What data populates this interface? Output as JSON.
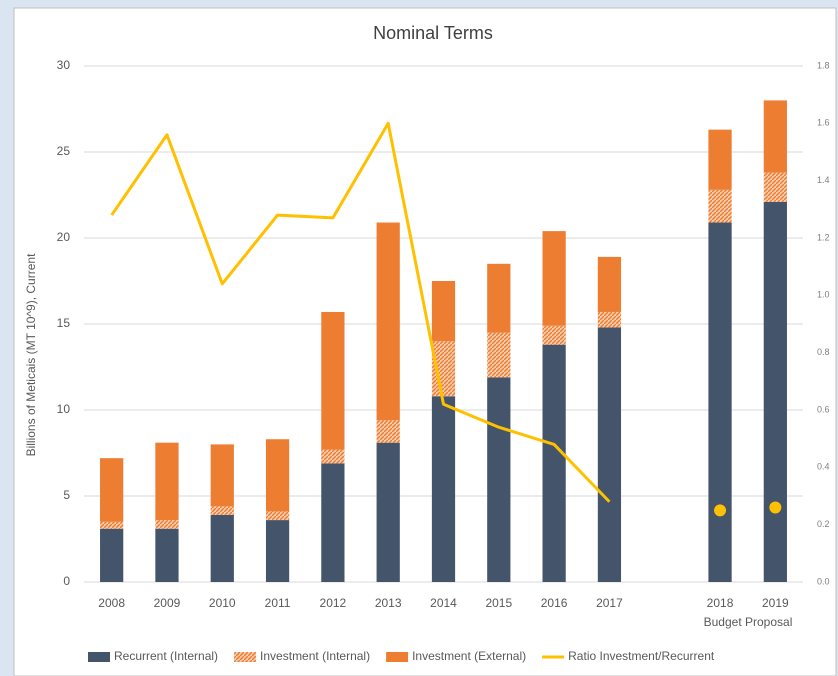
{
  "chart_data": {
    "type": "bar",
    "title": "Nominal Terms",
    "y_label": "Billions of Meticais (MT 10^9), Current",
    "annotation": "Budget Proposal",
    "categories": [
      "2008",
      "2009",
      "2010",
      "2011",
      "2012",
      "2013",
      "2014",
      "2015",
      "2016",
      "2017",
      null,
      "2018",
      "2019"
    ],
    "ylim": [
      0,
      30
    ],
    "yticks": [
      0,
      5,
      10,
      15,
      20,
      25,
      30
    ],
    "y2lim": [
      0,
      1.8
    ],
    "y2ticks": [
      {
        "value": 0,
        "label": "0.0"
      },
      0.2,
      0.4,
      0.6,
      0.8,
      {
        "value": 1,
        "label": "1.0"
      },
      1.2,
      1.4,
      1.6,
      1.8
    ],
    "grid": true,
    "legend": "bottom",
    "series": [
      {
        "name": "Recurrent (Internal)",
        "kind": "bar",
        "color": "#44546a",
        "values": [
          3.1,
          3.1,
          3.9,
          3.6,
          6.9,
          8.1,
          10.8,
          11.9,
          13.8,
          14.8,
          null,
          20.9,
          22.1
        ]
      },
      {
        "name": "Investment (Internal)",
        "kind": "bar",
        "color": "#ed7d31",
        "pattern": "hatched",
        "values": [
          0.4,
          0.5,
          0.5,
          0.5,
          0.8,
          1.3,
          3.2,
          2.6,
          1.1,
          0.9,
          null,
          1.9,
          1.7
        ]
      },
      {
        "name": "Investment (External)",
        "kind": "bar",
        "color": "#ed7d31",
        "values": [
          3.7,
          4.5,
          3.6,
          4.2,
          8.0,
          11.5,
          3.5,
          4.0,
          5.5,
          3.2,
          null,
          3.5,
          4.2
        ]
      },
      {
        "name": "Ratio Investment/Recurrent",
        "kind": "line",
        "axis": "y2",
        "color": "#ffc000",
        "values": [
          1.28,
          1.56,
          1.04,
          1.28,
          1.27,
          1.6,
          0.62,
          0.54,
          0.48,
          0.28,
          null,
          null,
          null
        ]
      },
      {
        "kind": "dot",
        "axis": "y2",
        "color": "#ffc000",
        "values": [
          null,
          null,
          null,
          null,
          null,
          null,
          null,
          null,
          null,
          null,
          null,
          0.25,
          0.26
        ]
      }
    ]
  }
}
